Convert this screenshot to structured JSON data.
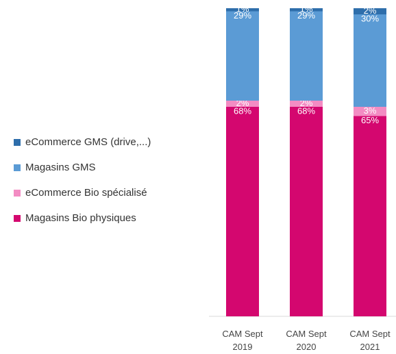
{
  "chart_data": {
    "type": "stacked_bar",
    "categories": [
      "CAM Sept 2019",
      "CAM Sept 2020",
      "CAM Sept 2021"
    ],
    "series": [
      {
        "name": "Magasins Bio physiques",
        "color": "#d4076f",
        "values": [
          68,
          68,
          65
        ],
        "value_labels": [
          "68%",
          "68%",
          "65%"
        ]
      },
      {
        "name": "eCommerce Bio spécialisé",
        "color": "#f38cc3",
        "values": [
          2,
          2,
          3
        ],
        "value_labels": [
          "2%",
          "2%",
          "3%"
        ]
      },
      {
        "name": "Magasins GMS",
        "color": "#5b9bd5",
        "values": [
          29,
          29,
          30
        ],
        "value_labels": [
          "29%",
          "29%",
          "30%"
        ]
      },
      {
        "name": "eCommerce GMS (drive,...)",
        "color": "#2e6eab",
        "values": [
          1,
          1,
          2
        ],
        "value_labels": [
          "1%",
          "1%",
          "2%"
        ]
      }
    ],
    "ylim": [
      0,
      100
    ]
  }
}
